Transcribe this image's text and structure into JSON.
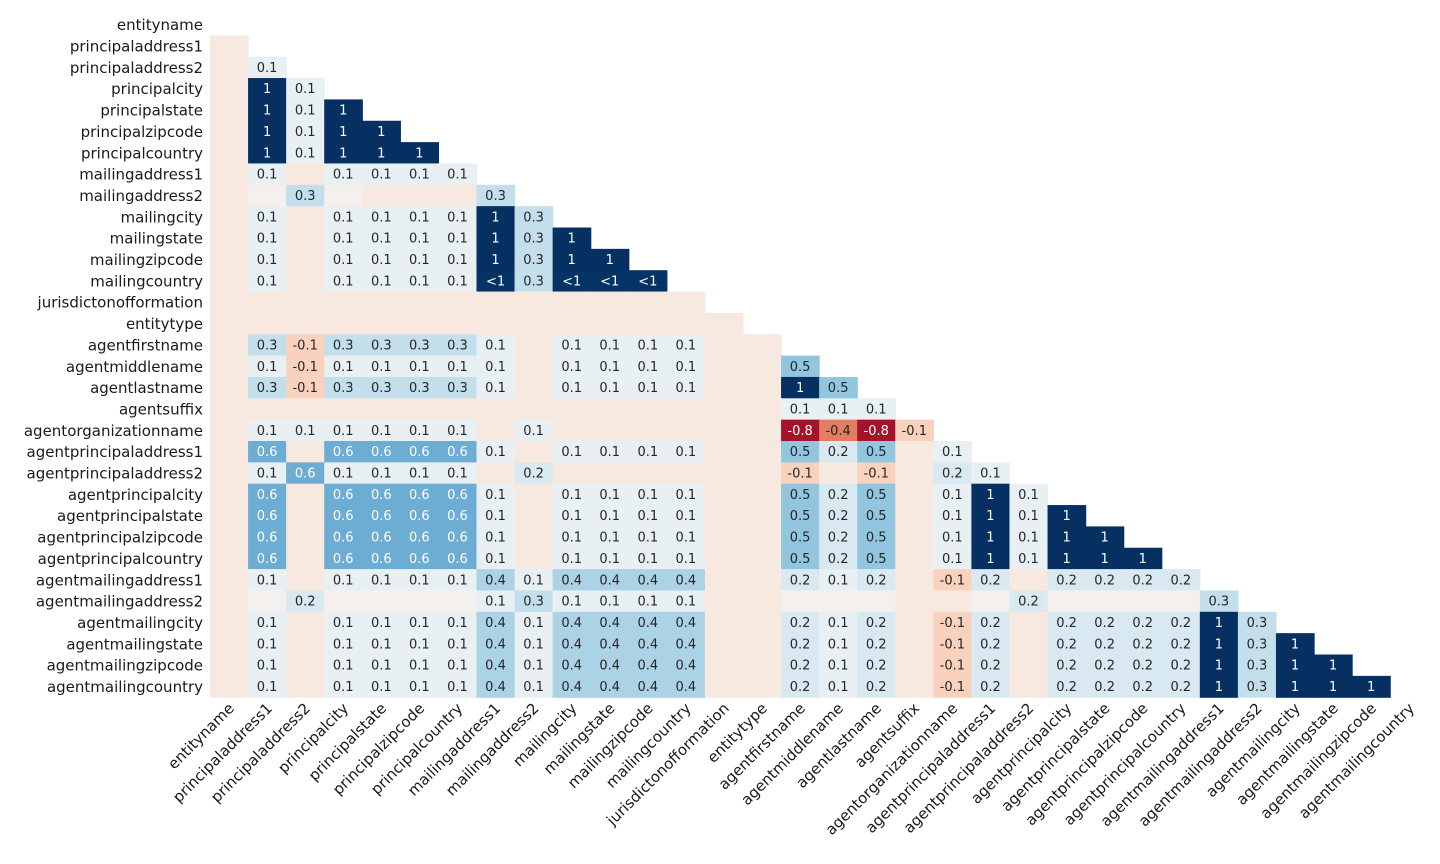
{
  "chart_data": {
    "type": "heatmap",
    "title": "",
    "xlabel": "",
    "ylabel": "",
    "value_range": [
      -1,
      1
    ],
    "colormap": "RdBu",
    "colors": {
      "negative_strong": "#67001f",
      "negative_mid": "#d6604d",
      "neutral_pos": "#f7f7f7",
      "neutral_neg": "#fbe3d6",
      "positive_mid": "#6baed6",
      "positive_strong": "#053061"
    },
    "labels": [
      "entityname",
      "principaladdress1",
      "principaladdress2",
      "principalcity",
      "principalstate",
      "principalzipcode",
      "principalcountry",
      "mailingaddress1",
      "mailingaddress2",
      "mailingcity",
      "mailingstate",
      "mailingzipcode",
      "mailingcountry",
      "jurisdictonofformation",
      "entitytype",
      "agentfirstname",
      "agentmiddlename",
      "agentlastname",
      "agentsuffix",
      "agentorganizationname",
      "agentprincipaladdress1",
      "agentprincipaladdress2",
      "agentprincipalcity",
      "agentprincipalstate",
      "agentprincipalzipcode",
      "agentprincipalcountry",
      "agentmailingaddress1",
      "agentmailingaddress2",
      "agentmailingcity",
      "agentmailingstate",
      "agentmailingzipcode",
      "agentmailingcountry"
    ],
    "rows": [
      [],
      [
        -0.02
      ],
      [
        -0.02,
        0.1
      ],
      [
        -0.02,
        1,
        0.1
      ],
      [
        -0.02,
        1,
        0.1,
        1
      ],
      [
        -0.02,
        1,
        0.1,
        1,
        1
      ],
      [
        -0.02,
        1,
        0.1,
        1,
        1,
        1
      ],
      [
        -0.02,
        0.1,
        -0.02,
        0.1,
        0.1,
        0.1,
        0.1
      ],
      [
        -0.02,
        0.02,
        0.3,
        0.02,
        -0.02,
        -0.02,
        -0.02,
        0.3
      ],
      [
        -0.02,
        0.1,
        -0.02,
        0.1,
        0.1,
        0.1,
        0.1,
        1,
        0.3
      ],
      [
        -0.02,
        0.1,
        -0.02,
        0.1,
        0.1,
        0.1,
        0.1,
        1,
        0.3,
        1
      ],
      [
        -0.02,
        0.1,
        -0.02,
        0.1,
        0.1,
        0.1,
        0.1,
        1,
        0.3,
        1,
        1
      ],
      [
        -0.02,
        0.1,
        -0.02,
        0.1,
        0.1,
        0.1,
        0.1,
        0.99,
        0.3,
        0.99,
        0.99,
        0.99
      ],
      [
        -0.02,
        -0.02,
        -0.02,
        -0.02,
        -0.02,
        -0.02,
        -0.02,
        -0.02,
        -0.02,
        -0.02,
        -0.02,
        -0.02,
        -0.02
      ],
      [
        -0.02,
        -0.02,
        -0.02,
        -0.02,
        -0.02,
        -0.02,
        -0.02,
        -0.02,
        -0.02,
        -0.02,
        -0.02,
        -0.02,
        -0.02,
        -0.02
      ],
      [
        -0.02,
        0.3,
        -0.1,
        0.3,
        0.3,
        0.3,
        0.3,
        0.1,
        -0.02,
        0.1,
        0.1,
        0.1,
        0.1,
        -0.02,
        -0.02
      ],
      [
        -0.02,
        0.1,
        -0.1,
        0.1,
        0.1,
        0.1,
        0.1,
        0.1,
        -0.02,
        0.1,
        0.1,
        0.1,
        0.1,
        -0.02,
        -0.02,
        0.5
      ],
      [
        -0.02,
        0.3,
        -0.1,
        0.3,
        0.3,
        0.3,
        0.3,
        0.1,
        -0.02,
        0.1,
        0.1,
        0.1,
        0.1,
        -0.02,
        -0.02,
        1,
        0.5
      ],
      [
        -0.02,
        -0.02,
        -0.02,
        -0.02,
        -0.02,
        -0.02,
        -0.02,
        -0.02,
        -0.02,
        -0.02,
        -0.02,
        -0.02,
        -0.02,
        -0.02,
        -0.02,
        0.1,
        0.1,
        0.1
      ],
      [
        -0.02,
        0.1,
        0.1,
        0.1,
        0.1,
        0.1,
        0.1,
        -0.02,
        0.1,
        -0.02,
        -0.02,
        -0.02,
        -0.02,
        -0.02,
        -0.02,
        -0.8,
        -0.4,
        -0.8,
        -0.1
      ],
      [
        -0.02,
        0.6,
        -0.02,
        0.6,
        0.6,
        0.6,
        0.6,
        0.1,
        -0.02,
        0.1,
        0.1,
        0.1,
        0.1,
        -0.02,
        -0.02,
        0.5,
        0.2,
        0.5,
        -0.02,
        0.1
      ],
      [
        -0.02,
        0.1,
        0.6,
        0.1,
        0.1,
        0.1,
        0.1,
        -0.02,
        0.2,
        -0.02,
        -0.02,
        -0.02,
        -0.02,
        -0.02,
        -0.02,
        -0.1,
        -0.02,
        -0.1,
        -0.02,
        0.2,
        0.1
      ],
      [
        -0.02,
        0.6,
        -0.02,
        0.6,
        0.6,
        0.6,
        0.6,
        0.1,
        -0.02,
        0.1,
        0.1,
        0.1,
        0.1,
        -0.02,
        -0.02,
        0.5,
        0.2,
        0.5,
        -0.02,
        0.1,
        1,
        0.1
      ],
      [
        -0.02,
        0.6,
        -0.02,
        0.6,
        0.6,
        0.6,
        0.6,
        0.1,
        -0.02,
        0.1,
        0.1,
        0.1,
        0.1,
        -0.02,
        -0.02,
        0.5,
        0.2,
        0.5,
        -0.02,
        0.1,
        1,
        0.1,
        1
      ],
      [
        -0.02,
        0.6,
        -0.02,
        0.6,
        0.6,
        0.6,
        0.6,
        0.1,
        -0.02,
        0.1,
        0.1,
        0.1,
        0.1,
        -0.02,
        -0.02,
        0.5,
        0.2,
        0.5,
        -0.02,
        0.1,
        1,
        0.1,
        1,
        1
      ],
      [
        -0.02,
        0.6,
        -0.02,
        0.6,
        0.6,
        0.6,
        0.6,
        0.1,
        -0.02,
        0.1,
        0.1,
        0.1,
        0.1,
        -0.02,
        -0.02,
        0.5,
        0.2,
        0.5,
        -0.02,
        0.1,
        1,
        0.1,
        1,
        1,
        1
      ],
      [
        -0.02,
        0.1,
        -0.02,
        0.1,
        0.1,
        0.1,
        0.1,
        0.4,
        0.1,
        0.4,
        0.4,
        0.4,
        0.4,
        -0.02,
        -0.02,
        0.2,
        0.1,
        0.2,
        -0.02,
        -0.1,
        0.2,
        -0.02,
        0.2,
        0.2,
        0.2,
        0.2
      ],
      [
        -0.02,
        0.02,
        0.2,
        0.02,
        0.02,
        0.02,
        0.02,
        0.1,
        0.3,
        0.1,
        0.1,
        0.1,
        0.1,
        -0.02,
        -0.02,
        0.02,
        0.02,
        0.02,
        -0.02,
        -0.02,
        0.02,
        0.2,
        0.02,
        0.02,
        0.02,
        0.02,
        0.3
      ],
      [
        -0.02,
        0.1,
        -0.02,
        0.1,
        0.1,
        0.1,
        0.1,
        0.4,
        0.1,
        0.4,
        0.4,
        0.4,
        0.4,
        -0.02,
        -0.02,
        0.2,
        0.1,
        0.2,
        -0.02,
        -0.1,
        0.2,
        -0.02,
        0.2,
        0.2,
        0.2,
        0.2,
        1,
        0.3
      ],
      [
        -0.02,
        0.1,
        -0.02,
        0.1,
        0.1,
        0.1,
        0.1,
        0.4,
        0.1,
        0.4,
        0.4,
        0.4,
        0.4,
        -0.02,
        -0.02,
        0.2,
        0.1,
        0.2,
        -0.02,
        -0.1,
        0.2,
        -0.02,
        0.2,
        0.2,
        0.2,
        0.2,
        1,
        0.3,
        1
      ],
      [
        -0.02,
        0.1,
        -0.02,
        0.1,
        0.1,
        0.1,
        0.1,
        0.4,
        0.1,
        0.4,
        0.4,
        0.4,
        0.4,
        -0.02,
        -0.02,
        0.2,
        0.1,
        0.2,
        -0.02,
        -0.1,
        0.2,
        -0.02,
        0.2,
        0.2,
        0.2,
        0.2,
        1,
        0.3,
        1,
        1
      ],
      [
        -0.02,
        0.1,
        -0.02,
        0.1,
        0.1,
        0.1,
        0.1,
        0.4,
        0.1,
        0.4,
        0.4,
        0.4,
        0.4,
        -0.02,
        -0.02,
        0.2,
        0.1,
        0.2,
        -0.02,
        -0.1,
        0.2,
        -0.02,
        0.2,
        0.2,
        0.2,
        0.2,
        1,
        0.3,
        1,
        1,
        1
      ]
    ],
    "annotations": [
      [],
      [
        ""
      ],
      [
        "",
        "0.1"
      ],
      [
        "",
        "1",
        "0.1"
      ],
      [
        "",
        "1",
        "0.1",
        "1"
      ],
      [
        "",
        "1",
        "0.1",
        "1",
        "1"
      ],
      [
        "",
        "1",
        "0.1",
        "1",
        "1",
        "1"
      ],
      [
        "",
        "0.1",
        "",
        "0.1",
        "0.1",
        "0.1",
        "0.1"
      ],
      [
        "",
        "",
        "0.3",
        "",
        "",
        "",
        "",
        "0.3"
      ],
      [
        "",
        "0.1",
        "",
        "0.1",
        "0.1",
        "0.1",
        "0.1",
        "1",
        "0.3"
      ],
      [
        "",
        "0.1",
        "",
        "0.1",
        "0.1",
        "0.1",
        "0.1",
        "1",
        "0.3",
        "1"
      ],
      [
        "",
        "0.1",
        "",
        "0.1",
        "0.1",
        "0.1",
        "0.1",
        "1",
        "0.3",
        "1",
        "1"
      ],
      [
        "",
        "0.1",
        "",
        "0.1",
        "0.1",
        "0.1",
        "0.1",
        "<1",
        "0.3",
        "<1",
        "<1",
        "<1"
      ],
      [
        "",
        "",
        "",
        "",
        "",
        "",
        "",
        "",
        "",
        "",
        "",
        "",
        ""
      ],
      [
        "",
        "",
        "",
        "",
        "",
        "",
        "",
        "",
        "",
        "",
        "",
        "",
        "",
        ""
      ],
      [
        "",
        "0.3",
        "-0.1",
        "0.3",
        "0.3",
        "0.3",
        "0.3",
        "0.1",
        "",
        "0.1",
        "0.1",
        "0.1",
        "0.1",
        "",
        ""
      ],
      [
        "",
        "0.1",
        "-0.1",
        "0.1",
        "0.1",
        "0.1",
        "0.1",
        "0.1",
        "",
        "0.1",
        "0.1",
        "0.1",
        "0.1",
        "",
        "",
        "0.5"
      ],
      [
        "",
        "0.3",
        "-0.1",
        "0.3",
        "0.3",
        "0.3",
        "0.3",
        "0.1",
        "",
        "0.1",
        "0.1",
        "0.1",
        "0.1",
        "",
        "",
        "1",
        "0.5"
      ],
      [
        "",
        "",
        "",
        "",
        "",
        "",
        "",
        "",
        "",
        "",
        "",
        "",
        "",
        "",
        "",
        "0.1",
        "0.1",
        "0.1"
      ],
      [
        "",
        "0.1",
        "0.1",
        "0.1",
        "0.1",
        "0.1",
        "0.1",
        "",
        "0.1",
        "",
        "",
        "",
        "",
        "",
        "",
        "-0.8",
        "-0.4",
        "-0.8",
        "-0.1"
      ],
      [
        "",
        "0.6",
        "",
        "0.6",
        "0.6",
        "0.6",
        "0.6",
        "0.1",
        "",
        "0.1",
        "0.1",
        "0.1",
        "0.1",
        "",
        "",
        "0.5",
        "0.2",
        "0.5",
        "",
        "0.1"
      ],
      [
        "",
        "0.1",
        "0.6",
        "0.1",
        "0.1",
        "0.1",
        "0.1",
        "",
        "0.2",
        "",
        "",
        "",
        "",
        "",
        "",
        "-0.1",
        "",
        "-0.1",
        "",
        "0.2",
        "0.1"
      ],
      [
        "",
        "0.6",
        "",
        "0.6",
        "0.6",
        "0.6",
        "0.6",
        "0.1",
        "",
        "0.1",
        "0.1",
        "0.1",
        "0.1",
        "",
        "",
        "0.5",
        "0.2",
        "0.5",
        "",
        "0.1",
        "1",
        "0.1"
      ],
      [
        "",
        "0.6",
        "",
        "0.6",
        "0.6",
        "0.6",
        "0.6",
        "0.1",
        "",
        "0.1",
        "0.1",
        "0.1",
        "0.1",
        "",
        "",
        "0.5",
        "0.2",
        "0.5",
        "",
        "0.1",
        "1",
        "0.1",
        "1"
      ],
      [
        "",
        "0.6",
        "",
        "0.6",
        "0.6",
        "0.6",
        "0.6",
        "0.1",
        "",
        "0.1",
        "0.1",
        "0.1",
        "0.1",
        "",
        "",
        "0.5",
        "0.2",
        "0.5",
        "",
        "0.1",
        "1",
        "0.1",
        "1",
        "1"
      ],
      [
        "",
        "0.6",
        "",
        "0.6",
        "0.6",
        "0.6",
        "0.6",
        "0.1",
        "",
        "0.1",
        "0.1",
        "0.1",
        "0.1",
        "",
        "",
        "0.5",
        "0.2",
        "0.5",
        "",
        "0.1",
        "1",
        "0.1",
        "1",
        "1",
        "1"
      ],
      [
        "",
        "0.1",
        "",
        "0.1",
        "0.1",
        "0.1",
        "0.1",
        "0.4",
        "0.1",
        "0.4",
        "0.4",
        "0.4",
        "0.4",
        "",
        "",
        "0.2",
        "0.1",
        "0.2",
        "",
        "-0.1",
        "0.2",
        "",
        "0.2",
        "0.2",
        "0.2",
        "0.2"
      ],
      [
        "",
        "",
        "0.2",
        "",
        "",
        "",
        "",
        "0.1",
        "0.3",
        "0.1",
        "0.1",
        "0.1",
        "0.1",
        "",
        "",
        "",
        "",
        "",
        "",
        "",
        "",
        "0.2",
        "",
        "",
        "",
        "",
        "0.3"
      ],
      [
        "",
        "0.1",
        "",
        "0.1",
        "0.1",
        "0.1",
        "0.1",
        "0.4",
        "0.1",
        "0.4",
        "0.4",
        "0.4",
        "0.4",
        "",
        "",
        "0.2",
        "0.1",
        "0.2",
        "",
        "-0.1",
        "0.2",
        "",
        "0.2",
        "0.2",
        "0.2",
        "0.2",
        "1",
        "0.3"
      ],
      [
        "",
        "0.1",
        "",
        "0.1",
        "0.1",
        "0.1",
        "0.1",
        "0.4",
        "0.1",
        "0.4",
        "0.4",
        "0.4",
        "0.4",
        "",
        "",
        "0.2",
        "0.1",
        "0.2",
        "",
        "-0.1",
        "0.2",
        "",
        "0.2",
        "0.2",
        "0.2",
        "0.2",
        "1",
        "0.3",
        "1"
      ],
      [
        "",
        "0.1",
        "",
        "0.1",
        "0.1",
        "0.1",
        "0.1",
        "0.4",
        "0.1",
        "0.4",
        "0.4",
        "0.4",
        "0.4",
        "",
        "",
        "0.2",
        "0.1",
        "0.2",
        "",
        "-0.1",
        "0.2",
        "",
        "0.2",
        "0.2",
        "0.2",
        "0.2",
        "1",
        "0.3",
        "1",
        "1"
      ],
      [
        "",
        "0.1",
        "",
        "0.1",
        "0.1",
        "0.1",
        "0.1",
        "0.4",
        "0.1",
        "0.4",
        "0.4",
        "0.4",
        "0.4",
        "",
        "",
        "0.2",
        "0.1",
        "0.2",
        "",
        "-0.1",
        "0.2",
        "",
        "0.2",
        "0.2",
        "0.2",
        "0.2",
        "1",
        "0.3",
        "1",
        "1",
        "1"
      ]
    ]
  }
}
